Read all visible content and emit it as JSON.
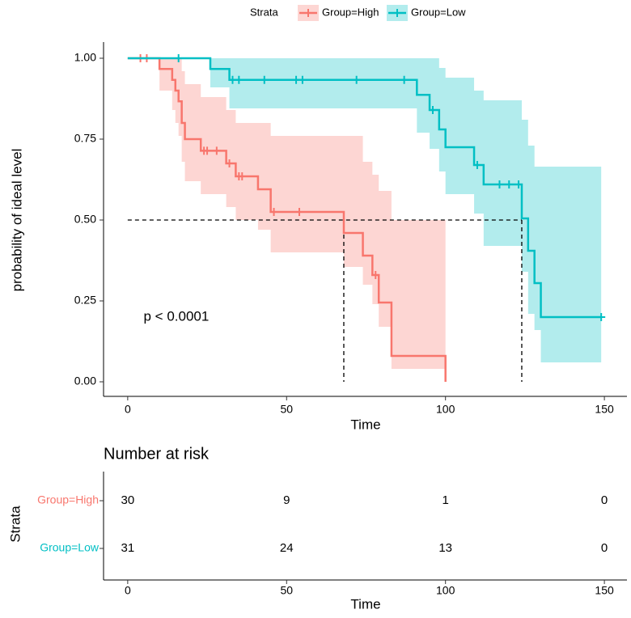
{
  "chart_data": [
    {
      "type": "step",
      "legend_title": "Strata",
      "legend_position": "top",
      "xlabel": "Time",
      "ylabel": "probability of ideal level",
      "annotation": "p < 0.0001",
      "annotation_x": 5,
      "annotation_y": 0.2,
      "xlim": [
        -7.6,
        157.1
      ],
      "ylim": [
        -0.045,
        1.05
      ],
      "xticks": [
        0,
        50,
        100,
        150
      ],
      "yticks": [
        {
          "value": 0,
          "label": "0.00"
        },
        0.25,
        {
          "value": 0.5,
          "label": "0.50"
        },
        0.75,
        {
          "value": 1,
          "label": "1.00"
        }
      ],
      "median_y": 0.5,
      "median_x": [
        68,
        124
      ],
      "series": [
        {
          "name": "Group=High",
          "color": "#F8766D",
          "x": [
            0,
            10,
            14,
            15,
            16,
            17,
            18,
            23,
            31,
            34,
            41,
            45,
            68,
            74,
            77,
            79,
            83,
            100
          ],
          "values": [
            1,
            0.967,
            0.933,
            0.9,
            0.867,
            0.8,
            0.75,
            0.714,
            0.675,
            0.635,
            0.595,
            0.525,
            0.46,
            0.39,
            0.33,
            0.245,
            0.08,
            0
          ],
          "upper": [
            1,
            1,
            1,
            1,
            1,
            0.96,
            0.92,
            0.88,
            0.84,
            0.8,
            0.8,
            0.76,
            0.76,
            0.68,
            0.64,
            0.59,
            0.5,
            0.5
          ],
          "lower": [
            1,
            0.9,
            0.84,
            0.8,
            0.76,
            0.68,
            0.62,
            0.58,
            0.54,
            0.5,
            0.47,
            0.4,
            0.355,
            0.3,
            0.24,
            0.17,
            0.04,
            0.015
          ],
          "censor_x": [
            4,
            6,
            24,
            25,
            28,
            32,
            35,
            36,
            46,
            54,
            78
          ],
          "censor_y": [
            1,
            1,
            0.714,
            0.714,
            0.714,
            0.675,
            0.635,
            0.635,
            0.525,
            0.525,
            0.33
          ]
        },
        {
          "name": "Group=Low",
          "color": "#00BFC4",
          "x": [
            0,
            26,
            32,
            91,
            95,
            98,
            100,
            109,
            112,
            124,
            126,
            128,
            130,
            149
          ],
          "values": [
            1,
            0.967,
            0.933,
            0.887,
            0.84,
            0.78,
            0.725,
            0.67,
            0.61,
            0.505,
            0.405,
            0.305,
            0.2,
            0.2
          ],
          "upper": [
            1,
            1,
            1,
            1,
            1,
            0.97,
            0.94,
            0.9,
            0.87,
            0.81,
            0.73,
            0.665,
            0.665,
            0.665
          ],
          "lower": [
            1,
            0.91,
            0.845,
            0.77,
            0.72,
            0.65,
            0.58,
            0.52,
            0.42,
            0.34,
            0.21,
            0.16,
            0.06,
            0.06
          ],
          "censor_x": [
            16,
            33,
            35,
            43,
            53,
            55,
            72,
            87,
            96,
            110,
            117,
            120,
            123,
            149
          ],
          "censor_y": [
            1,
            0.933,
            0.933,
            0.933,
            0.933,
            0.933,
            0.933,
            0.933,
            0.84,
            0.67,
            0.61,
            0.61,
            0.61,
            0.2
          ]
        }
      ]
    },
    {
      "type": "table",
      "title": "Number at risk",
      "ylabel": "Strata",
      "xlabel": "Time",
      "xlim": [
        -7.6,
        157.1
      ],
      "xticks": [
        0,
        50,
        100,
        150
      ],
      "rows": [
        [
          30,
          9,
          1,
          0
        ],
        [
          31,
          24,
          13,
          0
        ]
      ]
    }
  ]
}
